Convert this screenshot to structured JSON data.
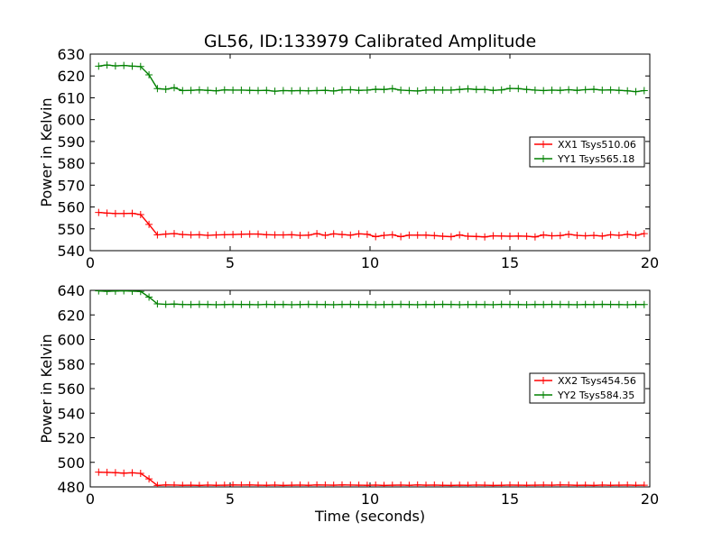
{
  "chart_data": {
    "type": "line",
    "title": "GL56, ID:133979 Calibrated Amplitude",
    "xlabel": "Time (seconds)",
    "grid": false,
    "legend_position": "right",
    "colors": {
      "red": "#ff0000",
      "green": "#008000"
    },
    "marker": "plus",
    "x": [
      0.3,
      0.6,
      0.9,
      1.2,
      1.5,
      1.8,
      2.1,
      2.4,
      2.7,
      3.0,
      3.3,
      3.6,
      3.9,
      4.2,
      4.5,
      4.8,
      5.1,
      5.4,
      5.7,
      6.0,
      6.3,
      6.6,
      6.9,
      7.2,
      7.5,
      7.8,
      8.1,
      8.4,
      8.7,
      9.0,
      9.3,
      9.6,
      9.9,
      10.2,
      10.5,
      10.8,
      11.1,
      11.4,
      11.7,
      12.0,
      12.3,
      12.6,
      12.9,
      13.2,
      13.5,
      13.8,
      14.1,
      14.4,
      14.7,
      15.0,
      15.3,
      15.6,
      15.9,
      16.2,
      16.5,
      16.8,
      17.1,
      17.4,
      17.7,
      18.0,
      18.3,
      18.6,
      18.9,
      19.2,
      19.5,
      19.8
    ],
    "panels": [
      {
        "ylabel": "Power in Kelvin",
        "ylim": [
          540,
          630
        ],
        "yticks": [
          "540",
          "550",
          "560",
          "570",
          "580",
          "590",
          "600",
          "610",
          "620",
          "630"
        ],
        "xlim": [
          0,
          20
        ],
        "xticks": [
          "0",
          "5",
          "10",
          "15",
          "20"
        ],
        "series": [
          {
            "name": "XX1 Tsys510.06",
            "color": "#ff0000",
            "values": [
              557.5,
              557.2,
              557.0,
              557.0,
              557.1,
              556.5,
              552.0,
              547.2,
              547.6,
              547.8,
              547.4,
              547.2,
              547.3,
              547.0,
              547.2,
              547.3,
              547.4,
              547.5,
              547.6,
              547.6,
              547.3,
              547.2,
              547.2,
              547.3,
              547.0,
              547.1,
              547.8,
              547.0,
              547.7,
              547.4,
              547.1,
              547.7,
              547.5,
              546.4,
              547.0,
              547.3,
              546.4,
              547.1,
              547.1,
              547.1,
              546.9,
              546.6,
              546.4,
              547.2,
              546.6,
              546.5,
              546.3,
              546.8,
              546.7,
              546.6,
              546.7,
              546.6,
              546.3,
              547.2,
              546.8,
              546.9,
              547.5,
              547.0,
              546.8,
              547.0,
              546.7,
              547.3,
              547.0,
              547.5,
              547.0,
              547.8
            ]
          },
          {
            "name": "YY1 Tsys565.18",
            "color": "#008000",
            "values": [
              624.5,
              625.0,
              624.6,
              624.8,
              624.5,
              624.3,
              620.5,
              614.2,
              613.9,
              614.6,
              613.3,
              613.4,
              613.6,
              613.4,
              613.2,
              613.6,
              613.5,
              613.5,
              613.4,
              613.3,
              613.4,
              613.0,
              613.3,
              613.2,
              613.3,
              613.2,
              613.3,
              613.4,
              613.1,
              613.6,
              613.7,
              613.4,
              613.5,
              613.9,
              613.8,
              614.2,
              613.5,
              613.3,
              613.1,
              613.5,
              613.6,
              613.5,
              613.5,
              613.8,
              614.1,
              613.8,
              613.8,
              613.4,
              613.6,
              614.3,
              614.2,
              613.8,
              613.5,
              613.3,
              613.5,
              613.4,
              613.7,
              613.4,
              613.7,
              613.9,
              613.5,
              613.6,
              613.4,
              613.2,
              612.8,
              613.3
            ]
          }
        ]
      },
      {
        "ylabel": "Power in Kelvin",
        "ylim": [
          480,
          640
        ],
        "yticks": [
          "480",
          "500",
          "520",
          "540",
          "560",
          "580",
          "600",
          "620",
          "640"
        ],
        "xlim": [
          0,
          20
        ],
        "xticks": [
          "0",
          "5",
          "10",
          "15",
          "20"
        ],
        "series": [
          {
            "name": "XX2 Tsys454.56",
            "color": "#ff0000",
            "values": [
              492.0,
              491.8,
              491.6,
              491.2,
              491.5,
              491.0,
              486.5,
              481.2,
              481.6,
              481.5,
              481.3,
              481.4,
              481.2,
              481.5,
              481.3,
              481.4,
              481.6,
              481.5,
              481.6,
              481.4,
              481.3,
              481.5,
              481.2,
              481.4,
              481.5,
              481.3,
              481.6,
              481.5,
              481.4,
              481.6,
              481.5,
              481.4,
              481.3,
              481.5,
              481.2,
              481.4,
              481.5,
              481.3,
              481.6,
              481.4,
              481.5,
              481.3,
              481.2,
              481.4,
              481.3,
              481.5,
              481.4,
              481.2,
              481.3,
              481.5,
              481.4,
              481.3,
              481.4,
              481.5,
              481.4,
              481.6,
              481.5,
              481.3,
              481.4,
              481.2,
              481.5,
              481.3,
              481.4,
              481.5,
              481.3,
              481.4
            ]
          },
          {
            "name": "YY2 Tsys584.35",
            "color": "#008000",
            "values": [
              639.5,
              639.2,
              639.4,
              639.6,
              639.3,
              639.1,
              634.5,
              629.0,
              628.6,
              628.8,
              628.5,
              628.4,
              628.6,
              628.5,
              628.3,
              628.4,
              628.6,
              628.5,
              628.4,
              628.3,
              628.6,
              628.4,
              628.5,
              628.3,
              628.4,
              628.6,
              628.5,
              628.4,
              628.3,
              628.5,
              628.6,
              628.4,
              628.5,
              628.3,
              628.4,
              628.5,
              628.6,
              628.4,
              628.3,
              628.5,
              628.4,
              628.6,
              628.5,
              628.3,
              628.4,
              628.5,
              628.4,
              628.3,
              628.6,
              628.5,
              628.4,
              628.3,
              628.5,
              628.4,
              628.6,
              628.5,
              628.4,
              628.3,
              628.5,
              628.4,
              628.6,
              628.5,
              628.4,
              628.3,
              628.5,
              628.4
            ]
          }
        ]
      }
    ]
  }
}
